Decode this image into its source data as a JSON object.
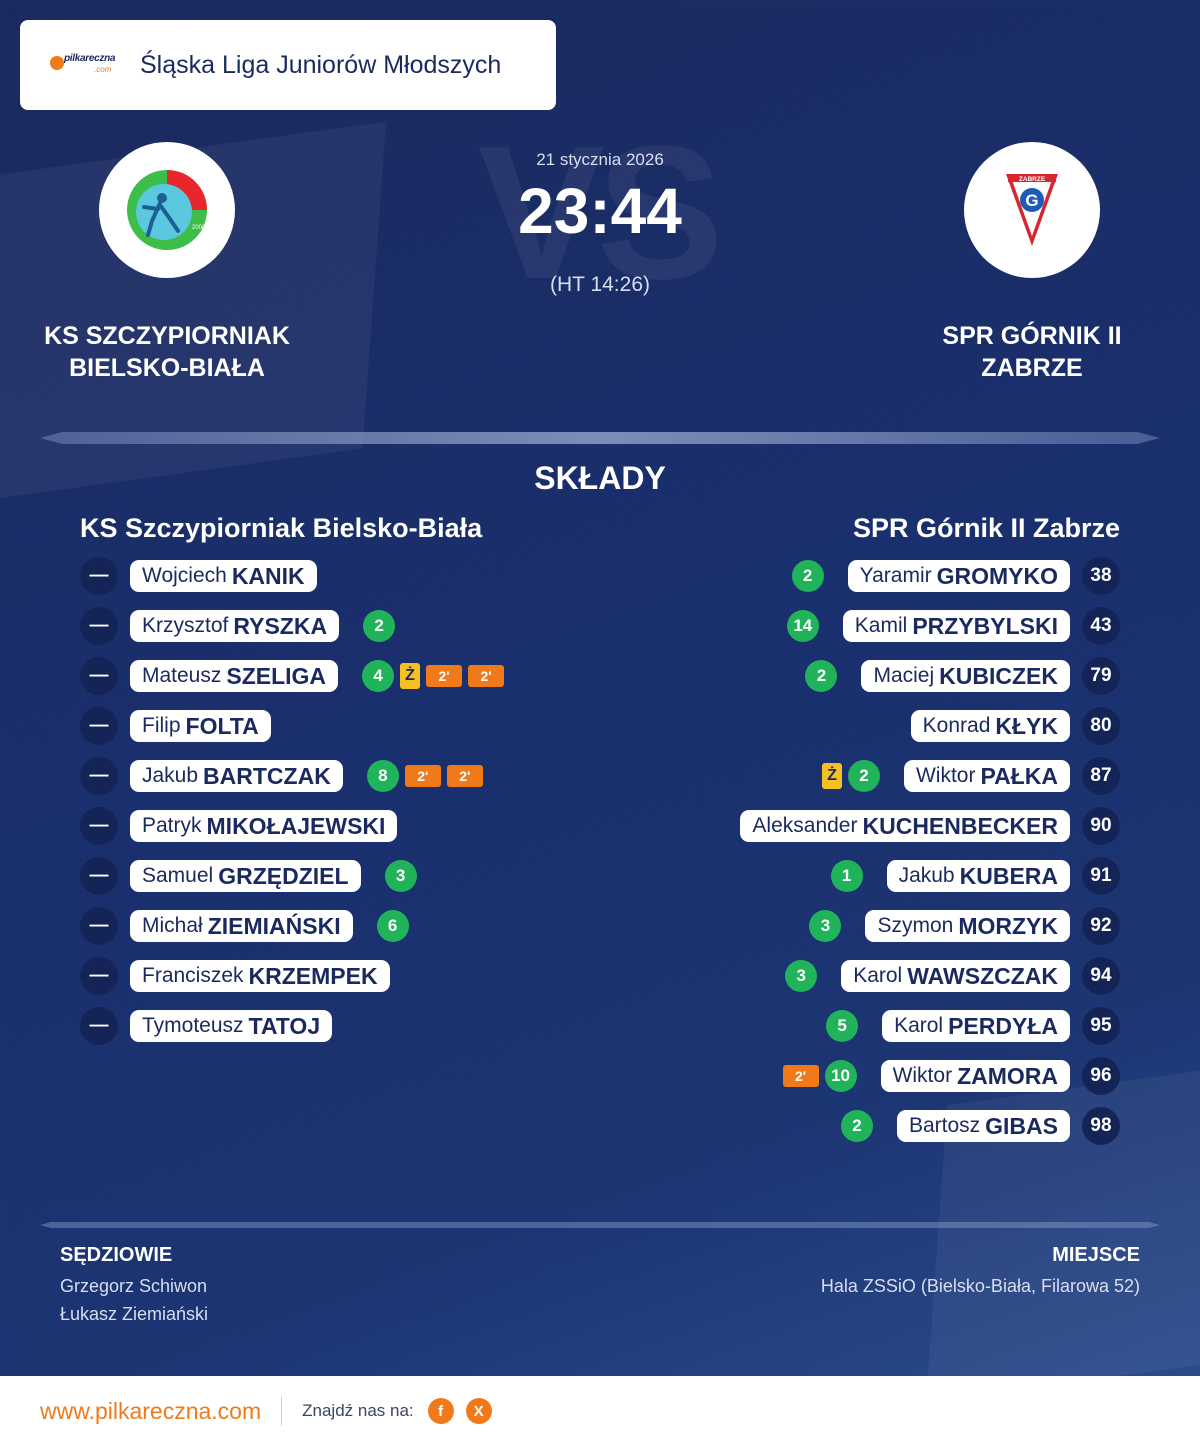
{
  "league": {
    "brand_top": "pilkareczna",
    "brand_bottom": ".com",
    "title": "Śląska Liga Juniorów Młodszych"
  },
  "match": {
    "date": "21 stycznia 2026",
    "score": "23:44",
    "halftime": "(HT 14:26)",
    "vs_text": "VS"
  },
  "home": {
    "name_line1": "KS SZCZYPIORNIAK",
    "name_line2": "BIELSKO-BIAŁA",
    "squad_title": "KS Szczypiorniak Bielsko-Biała",
    "logo_text": "2008",
    "players": [
      {
        "number": "—",
        "first": "Wojciech",
        "last": "KANIK",
        "goals": "",
        "yellow": "",
        "susp": []
      },
      {
        "number": "—",
        "first": "Krzysztof",
        "last": "RYSZKA",
        "goals": "2",
        "yellow": "",
        "susp": []
      },
      {
        "number": "—",
        "first": "Mateusz",
        "last": "SZELIGA",
        "goals": "4",
        "yellow": "Ż",
        "susp": [
          "2'",
          "2'"
        ]
      },
      {
        "number": "—",
        "first": "Filip",
        "last": "FOLTA",
        "goals": "",
        "yellow": "",
        "susp": []
      },
      {
        "number": "—",
        "first": "Jakub",
        "last": "BARTCZAK",
        "goals": "8",
        "yellow": "",
        "susp": [
          "2'",
          "2'"
        ]
      },
      {
        "number": "—",
        "first": "Patryk",
        "last": "MIKOŁAJEWSKI",
        "goals": "",
        "yellow": "",
        "susp": []
      },
      {
        "number": "—",
        "first": "Samuel",
        "last": "GRZĘDZIEL",
        "goals": "3",
        "yellow": "",
        "susp": []
      },
      {
        "number": "—",
        "first": "Michał",
        "last": "ZIEMIAŃSKI",
        "goals": "6",
        "yellow": "",
        "susp": []
      },
      {
        "number": "—",
        "first": "Franciszek",
        "last": "KRZEMPEK",
        "goals": "",
        "yellow": "",
        "susp": []
      },
      {
        "number": "—",
        "first": "Tymoteusz",
        "last": "TATOJ",
        "goals": "",
        "yellow": "",
        "susp": []
      }
    ]
  },
  "away": {
    "name_line1": "SPR GÓRNIK II",
    "name_line2": "ZABRZE",
    "squad_title": "SPR Górnik II Zabrze",
    "logo_text": "ZABRZE",
    "logo_letter": "G",
    "players": [
      {
        "number": "38",
        "first": "Yaramir",
        "last": "GROMYKO",
        "goals": "2",
        "yellow": "",
        "susp": []
      },
      {
        "number": "43",
        "first": "Kamil",
        "last": "PRZYBYLSKI",
        "goals": "14",
        "yellow": "",
        "susp": []
      },
      {
        "number": "79",
        "first": "Maciej",
        "last": "KUBICZEK",
        "goals": "2",
        "yellow": "",
        "susp": []
      },
      {
        "number": "80",
        "first": "Konrad",
        "last": "KŁYK",
        "goals": "",
        "yellow": "",
        "susp": []
      },
      {
        "number": "87",
        "first": "Wiktor",
        "last": "PAŁKA",
        "goals": "2",
        "yellow": "Ż",
        "susp": []
      },
      {
        "number": "90",
        "first": "Aleksander",
        "last": "KUCHENBECKER",
        "goals": "",
        "yellow": "",
        "susp": []
      },
      {
        "number": "91",
        "first": "Jakub",
        "last": "KUBERA",
        "goals": "1",
        "yellow": "",
        "susp": []
      },
      {
        "number": "92",
        "first": "Szymon",
        "last": "MORZYK",
        "goals": "3",
        "yellow": "",
        "susp": []
      },
      {
        "number": "94",
        "first": "Karol",
        "last": "WAWSZCZAK",
        "goals": "3",
        "yellow": "",
        "susp": []
      },
      {
        "number": "95",
        "first": "Karol",
        "last": "PERDYŁA",
        "goals": "5",
        "yellow": "",
        "susp": []
      },
      {
        "number": "96",
        "first": "Wiktor",
        "last": "ZAMORA",
        "goals": "10",
        "yellow": "",
        "susp": [
          "2'"
        ]
      },
      {
        "number": "98",
        "first": "Bartosz",
        "last": "GIBAS",
        "goals": "2",
        "yellow": "",
        "susp": []
      }
    ]
  },
  "section_title": "SKŁADY",
  "referees": {
    "label": "SĘDZIOWIE",
    "names": [
      "Grzegorz Schiwon",
      "Łukasz Ziemiański"
    ]
  },
  "venue": {
    "label": "MIEJSCE",
    "text": "Hala ZSSiO (Bielsko-Biała, Filarowa 52)"
  },
  "footer": {
    "url": "www.pilkareczna.com",
    "find_us": "Znajdź nas na:",
    "social": [
      "f",
      "X"
    ]
  },
  "colors": {
    "goal": "#21b35a",
    "yellow": "#f5c023",
    "suspension": "#f07a1a",
    "accent": "#f07a1a"
  },
  "icons": [
    "facebook-icon",
    "x-icon"
  ]
}
